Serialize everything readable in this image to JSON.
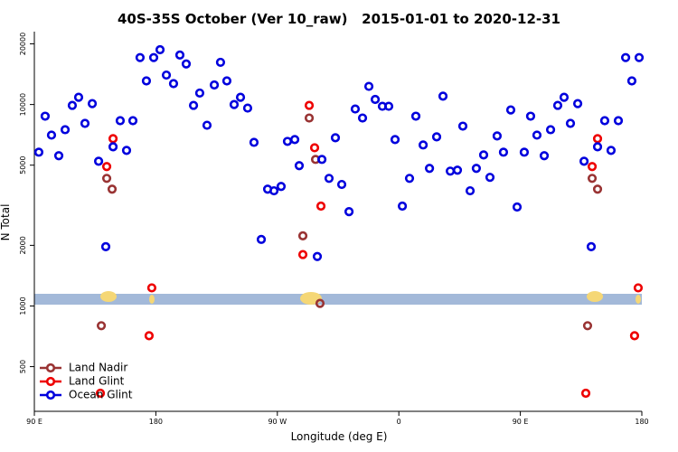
{
  "chart_data": {
    "type": "scatter",
    "title": "40S-35S October (Ver 10_raw)   2015-01-01 to 2020-12-31",
    "x_label": "Longitude (deg E)",
    "y_label": "N Total",
    "xlim": [
      90,
      540
    ],
    "xticks": [
      {
        "value": 90,
        "label": "90 E"
      },
      180,
      {
        "value": 270,
        "label": "90 W"
      },
      {
        "value": 360,
        "label": "0"
      },
      {
        "value": 450,
        "label": "90 E"
      },
      {
        "value": 540,
        "label": "180"
      }
    ],
    "ylim": [
      300,
      23000
    ],
    "yticks": [
      500,
      1000,
      2000,
      5000,
      10000,
      20000
    ],
    "log_y": true,
    "legend": "bottom-left",
    "series": [
      {
        "name": "Land Nadir",
        "color": "#993333",
        "x": [
          139.6,
          143.6,
          147.6,
          288.9,
          293.6,
          298.3,
          301.6,
          499.8,
          503.2,
          507.2
        ],
        "values": [
          798,
          4300,
          3800,
          2230,
          8570,
          5340,
          1030,
          798,
          4300,
          3800
        ]
      },
      {
        "name": "Land Glint",
        "color": "#ee0000",
        "x": [
          138.9,
          143.6,
          148.3,
          175,
          177,
          288.9,
          293.6,
          297.6,
          302.3,
          498.5,
          503.2,
          507.2,
          534.6,
          537.3
        ],
        "values": [
          369,
          4920,
          6770,
          712,
          1230,
          1800,
          9900,
          6100,
          3130,
          369,
          4920,
          6770,
          712,
          1230
        ]
      },
      {
        "name": "Ocean Glint",
        "color": "#0000dd",
        "x": [
          93.3,
          98,
          102.7,
          108.1,
          112.8,
          118.1,
          122.8,
          127.5,
          132.9,
          137.6,
          142.9,
          148.3,
          153.6,
          158.3,
          163,
          168.3,
          173,
          178.4,
          183.1,
          187.8,
          193.1,
          197.8,
          202.5,
          207.9,
          212.5,
          217.9,
          223.3,
          227.9,
          232.6,
          238,
          242.7,
          248,
          252.7,
          258.1,
          262.8,
          267.5,
          272.8,
          277.5,
          282.9,
          286.2,
          299.6,
          303,
          308.3,
          313,
          317.7,
          323.1,
          327.7,
          333.1,
          337.8,
          342.5,
          347.8,
          352.5,
          357.2,
          362.6,
          367.9,
          372.6,
          378,
          382.7,
          388,
          392.7,
          398.1,
          403.4,
          407.4,
          412.8,
          417.4,
          422.8,
          427.5,
          432.8,
          437.5,
          442.9,
          447.6,
          452.9,
          457.6,
          462.3,
          467.7,
          472.4,
          477.7,
          482.4,
          487.1,
          492.5,
          497.2,
          502.5,
          507.2,
          512.5,
          517.2,
          522.6,
          528,
          532.6,
          538
        ],
        "values": [
          5800,
          8750,
          7050,
          5570,
          7500,
          9900,
          10860,
          8060,
          10100,
          5230,
          1970,
          6170,
          8310,
          5920,
          8310,
          17100,
          13100,
          17100,
          18700,
          14000,
          12700,
          17600,
          15900,
          9900,
          11400,
          7890,
          12500,
          16200,
          13100,
          10000,
          10860,
          9600,
          6490,
          2140,
          3800,
          3730,
          3920,
          6560,
          6700,
          4970,
          1760,
          5340,
          4300,
          6840,
          4010,
          2940,
          9500,
          8570,
          12300,
          10600,
          9800,
          9800,
          6700,
          3130,
          4300,
          8750,
          6300,
          4820,
          6910,
          11000,
          4670,
          4720,
          7810,
          3730,
          4820,
          5620,
          4350,
          6980,
          5800,
          9400,
          3100,
          5800,
          8750,
          7050,
          5570,
          7500,
          9900,
          10860,
          8060,
          10100,
          5230,
          1970,
          6170,
          8310,
          5920,
          8310,
          17100,
          13100,
          17100
        ]
      }
    ]
  }
}
